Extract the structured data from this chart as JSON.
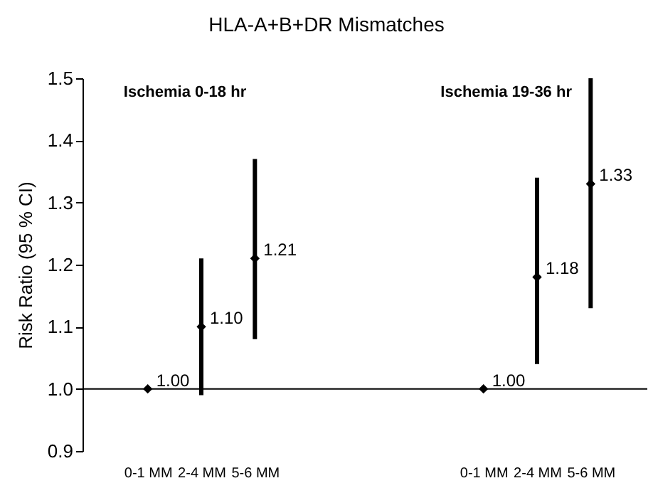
{
  "chart_data": [
    {
      "type": "scatter",
      "title": "HLA-A+B+DR Mismatches",
      "ylabel": "Risk Ratio (95 % CI)",
      "annotations": [
        "Ischemia 0-18 hr"
      ],
      "categories": [
        "0-1 MM",
        "2-4 MM",
        "5-6 MM"
      ],
      "values": [
        1,
        1.1,
        1.21
      ],
      "value_labels": [
        "1.00",
        "1.10",
        "1.21"
      ],
      "errors": [
        null,
        [
          0.99,
          1.21
        ],
        [
          1.08,
          1.37
        ]
      ],
      "color": "#000000",
      "marker": "diamond",
      "ylim": [
        0.9,
        1.5
      ],
      "yticks": [
        0.9,
        {
          "value": 1,
          "label": "1.0"
        },
        1.1,
        1.2,
        1.3,
        1.4,
        1.5
      ],
      "ref_lines": [
        {
          "axis": "y",
          "value": 1
        }
      ]
    },
    {
      "type": "scatter",
      "annotations": [
        "Ischemia 19-36 hr"
      ],
      "categories": [
        "0-1 MM",
        "2-4 MM",
        "5-6 MM"
      ],
      "values": [
        1,
        1.18,
        1.33
      ],
      "value_labels": [
        "1.00",
        "1.18",
        "1.33"
      ],
      "errors": [
        null,
        [
          1.04,
          1.34
        ],
        [
          1.13,
          1.5
        ]
      ],
      "color": "#000000",
      "marker": "diamond",
      "ylim": [
        0.9,
        1.5
      ],
      "ref_lines": [
        {
          "axis": "y",
          "value": 1
        }
      ],
      "tick_labels": "x"
    }
  ]
}
